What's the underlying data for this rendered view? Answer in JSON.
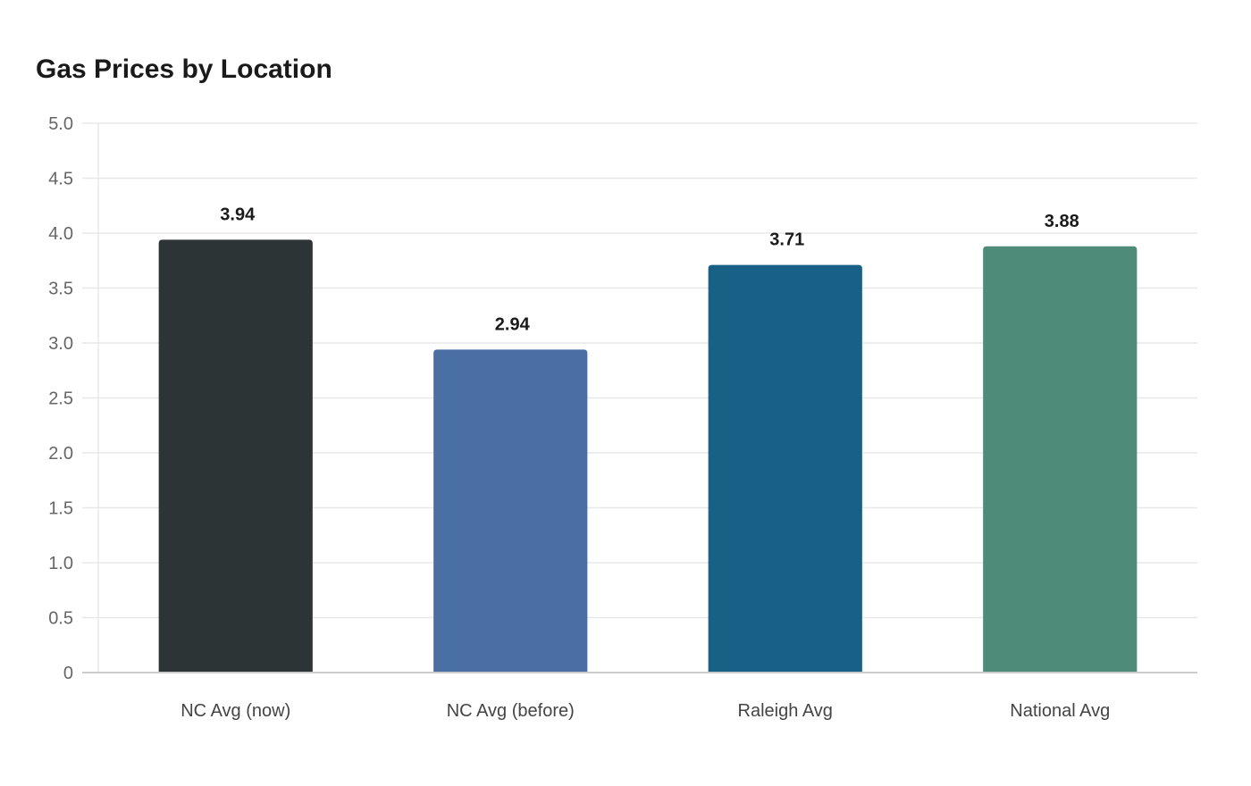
{
  "chart_data": {
    "type": "bar",
    "title": "Gas Prices by Location",
    "xlabel": "",
    "ylabel": "",
    "categories": [
      "NC Avg (now)",
      "NC Avg (before)",
      "Raleigh Avg",
      "National Avg"
    ],
    "values": [
      3.94,
      2.94,
      3.71,
      3.88
    ],
    "value_labels": [
      "3.94",
      "2.94",
      "3.71",
      "3.88"
    ],
    "colors": [
      "#2d3436",
      "#4a6fa5",
      "#186086",
      "#4e8c79"
    ],
    "ylim": [
      0,
      5
    ],
    "yticks": [
      0,
      0.5,
      1,
      1.5,
      2,
      2.5,
      3,
      3.5,
      4,
      4.5,
      5
    ],
    "ytick_labels": [
      "0",
      "0.5",
      "1.0",
      "1.5",
      "2.0",
      "2.5",
      "3.0",
      "3.5",
      "4.0",
      "4.5",
      "5.0"
    ],
    "grid": true,
    "legend": "none",
    "gridline_color": "#e8e8e8",
    "axis_color": "#cccccc"
  }
}
